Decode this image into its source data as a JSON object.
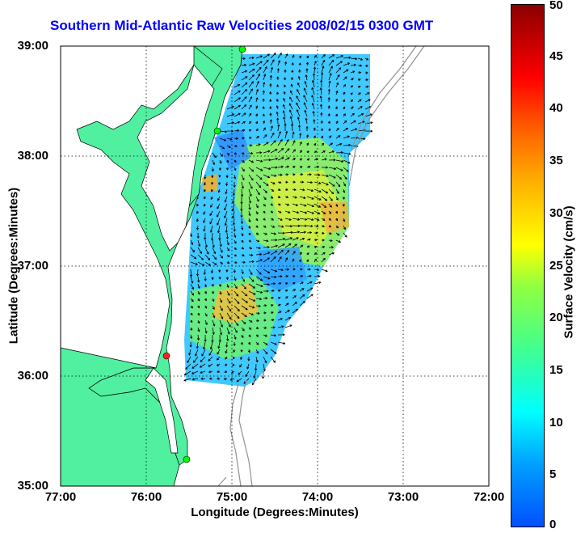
{
  "title": "Southern Mid-Atlantic Raw Velocities 2008/02/15 0300 GMT",
  "xlabel": "Longitude (Degrees:Minutes)",
  "ylabel": "Latitude (Degrees:Minutes)",
  "colorbar_label": "Surface Velocity (cm/s)",
  "chart_data": {
    "type": "heatmap",
    "x_ticks": [
      "77:00",
      "76:00",
      "75:00",
      "74:00",
      "73:00",
      "72:00"
    ],
    "y_ticks": [
      "39:00",
      "38:00",
      "37:00",
      "36:00",
      "35:00"
    ],
    "colorbar_ticks": [
      "0",
      "5",
      "10",
      "15",
      "20",
      "25",
      "30",
      "35",
      "40",
      "45",
      "50"
    ],
    "xlim": [
      -77,
      -72
    ],
    "ylim": [
      35,
      39
    ],
    "clim": [
      0,
      50
    ],
    "grid": true,
    "colors": {
      "land": "#50f0a0",
      "title": "#0000ff",
      "arrow": "#000000",
      "bathymetry": "#909090"
    }
  }
}
